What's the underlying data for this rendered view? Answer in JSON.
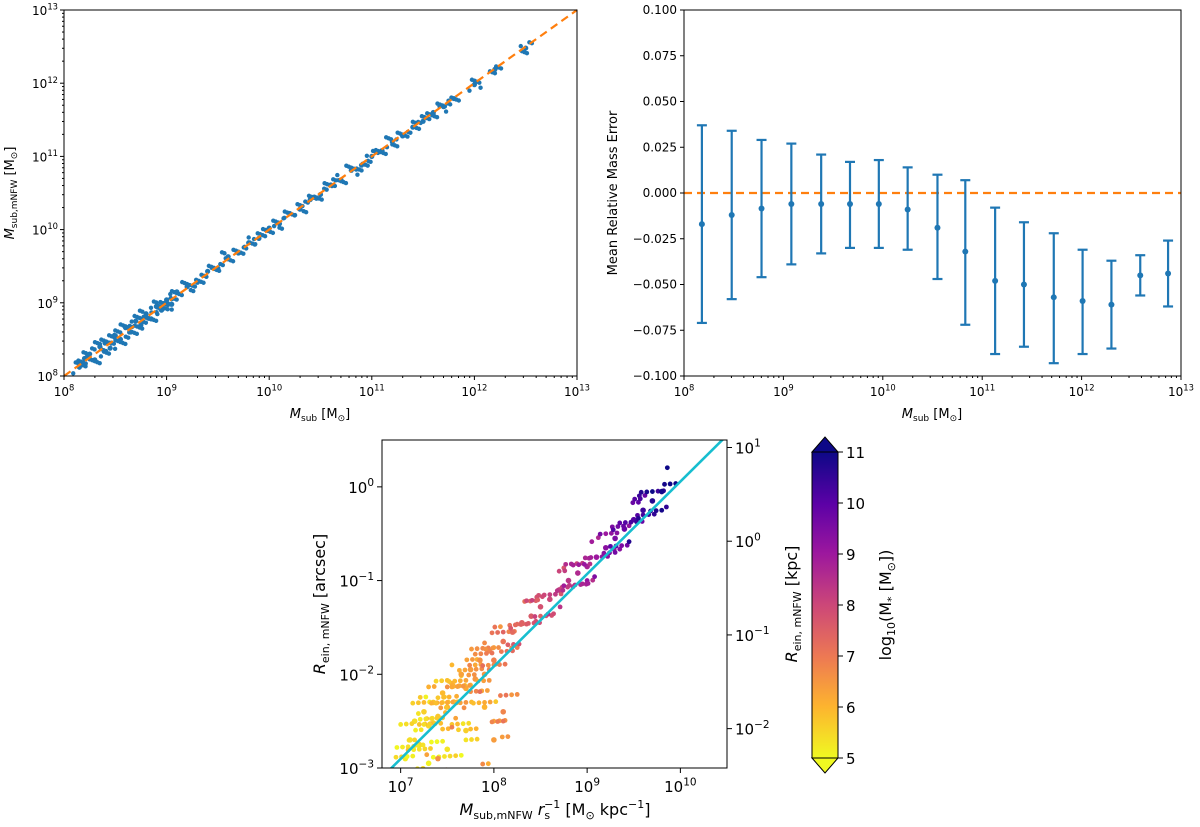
{
  "chart_data": [
    {
      "id": "panel-a",
      "type": "scatter",
      "xscale": "log",
      "yscale": "log",
      "xlim_exp": [
        8,
        13
      ],
      "ylim_exp": [
        8,
        13
      ],
      "xticks": [
        {
          "exp": 8,
          "label": "10",
          "sup": "8"
        },
        {
          "exp": 9,
          "label": "10",
          "sup": "9"
        },
        {
          "exp": 10,
          "label": "10",
          "sup": "10"
        },
        {
          "exp": 11,
          "label": "10",
          "sup": "11"
        },
        {
          "exp": 12,
          "label": "10",
          "sup": "12"
        },
        {
          "exp": 13,
          "label": "10",
          "sup": "13"
        }
      ],
      "yticks": [
        {
          "exp": 8,
          "label": "10",
          "sup": "8"
        },
        {
          "exp": 9,
          "label": "10",
          "sup": "9"
        },
        {
          "exp": 10,
          "label": "10",
          "sup": "10"
        },
        {
          "exp": 11,
          "label": "10",
          "sup": "11"
        },
        {
          "exp": 12,
          "label": "10",
          "sup": "12"
        },
        {
          "exp": 13,
          "label": "10",
          "sup": "13"
        }
      ],
      "xlabel": {
        "main": "M",
        "sub": "sub",
        "unit": "[M",
        "unit_sub": "⊙",
        "close": "]"
      },
      "ylabel": {
        "main": "M",
        "sub": "sub,mNFW",
        "unit": "[M",
        "unit_sub": "⊙",
        "close": "]"
      },
      "series": [
        {
          "name": "subhalos",
          "color": "#1f77b4",
          "marker": "dot",
          "points": [
            [
              8.15,
              8.12
            ],
            [
              8.2,
              8.24
            ],
            [
              8.25,
              8.3
            ],
            [
              8.3,
              8.22
            ],
            [
              8.35,
              8.4
            ],
            [
              8.4,
              8.45
            ],
            [
              8.45,
              8.38
            ],
            [
              8.5,
              8.55
            ],
            [
              8.55,
              8.5
            ],
            [
              8.6,
              8.66
            ],
            [
              8.65,
              8.6
            ],
            [
              8.7,
              8.75
            ],
            [
              8.75,
              8.7
            ],
            [
              8.8,
              8.85
            ],
            [
              8.85,
              8.78
            ],
            [
              8.9,
              8.95
            ],
            [
              8.95,
              8.9
            ],
            [
              9.0,
              9.04
            ],
            [
              9.05,
              8.98
            ],
            [
              9.1,
              9.15
            ],
            [
              9.2,
              9.22
            ],
            [
              9.3,
              9.28
            ],
            [
              9.4,
              9.43
            ],
            [
              9.5,
              9.47
            ],
            [
              9.6,
              9.63
            ],
            [
              9.7,
              9.68
            ],
            [
              9.8,
              9.82
            ],
            [
              9.9,
              9.88
            ],
            [
              10.0,
              10.02
            ],
            [
              10.1,
              10.08
            ],
            [
              10.2,
              10.22
            ],
            [
              10.3,
              10.28
            ],
            [
              10.4,
              10.41
            ],
            [
              10.5,
              10.48
            ],
            [
              10.6,
              10.61
            ],
            [
              10.7,
              10.68
            ],
            [
              10.8,
              10.81
            ],
            [
              10.9,
              10.88
            ],
            [
              11.0,
              11.0
            ],
            [
              11.1,
              11.08
            ],
            [
              11.2,
              11.2
            ],
            [
              11.3,
              11.28
            ],
            [
              11.4,
              11.4
            ],
            [
              11.5,
              11.48
            ],
            [
              11.6,
              11.6
            ],
            [
              11.7,
              11.68
            ],
            [
              11.8,
              11.79
            ],
            [
              12.0,
              11.98
            ],
            [
              12.2,
              12.19
            ],
            [
              12.5,
              12.48
            ]
          ]
        },
        {
          "name": "one-to-one",
          "color": "#ff7f0e",
          "line": "dashed",
          "x_exp": [
            8,
            13
          ],
          "y_exp": [
            8,
            13
          ]
        }
      ]
    },
    {
      "id": "panel-b",
      "type": "errorbar",
      "xscale": "log",
      "xlim_exp": [
        8,
        13
      ],
      "ylim": [
        -0.1,
        0.1
      ],
      "xticks": [
        {
          "exp": 8,
          "label": "10",
          "sup": "8"
        },
        {
          "exp": 9,
          "label": "10",
          "sup": "9"
        },
        {
          "exp": 10,
          "label": "10",
          "sup": "10"
        },
        {
          "exp": 11,
          "label": "10",
          "sup": "11"
        },
        {
          "exp": 12,
          "label": "10",
          "sup": "12"
        },
        {
          "exp": 13,
          "label": "10",
          "sup": "13"
        }
      ],
      "yticks": [
        {
          "value": 0.1,
          "label": "0.100"
        },
        {
          "value": 0.075,
          "label": "0.075"
        },
        {
          "value": 0.05,
          "label": "0.050"
        },
        {
          "value": 0.025,
          "label": "0.025"
        },
        {
          "value": 0.0,
          "label": "0.000"
        },
        {
          "value": -0.025,
          "label": "−0.025"
        },
        {
          "value": -0.05,
          "label": "−0.050"
        },
        {
          "value": -0.075,
          "label": "−0.075"
        },
        {
          "value": -0.1,
          "label": "−0.100"
        }
      ],
      "xlabel": {
        "main": "M",
        "sub": "sub",
        "unit": "[M",
        "unit_sub": "⊙",
        "close": "]"
      },
      "ylabel": "Mean Relative Mass Error",
      "series": [
        {
          "name": "mean relative error",
          "color": "#1f77b4",
          "points": [
            {
              "x_exp": 8.18,
              "y": -0.017,
              "lo": -0.071,
              "hi": 0.037
            },
            {
              "x_exp": 8.48,
              "y": -0.012,
              "lo": -0.058,
              "hi": 0.034
            },
            {
              "x_exp": 8.78,
              "y": -0.0085,
              "lo": -0.046,
              "hi": 0.029
            },
            {
              "x_exp": 9.08,
              "y": -0.006,
              "lo": -0.039,
              "hi": 0.027
            },
            {
              "x_exp": 9.38,
              "y": -0.006,
              "lo": -0.033,
              "hi": 0.021
            },
            {
              "x_exp": 9.67,
              "y": -0.006,
              "lo": -0.03,
              "hi": 0.017
            },
            {
              "x_exp": 9.96,
              "y": -0.006,
              "lo": -0.03,
              "hi": 0.018
            },
            {
              "x_exp": 10.25,
              "y": -0.009,
              "lo": -0.031,
              "hi": 0.014
            },
            {
              "x_exp": 10.55,
              "y": -0.019,
              "lo": -0.047,
              "hi": 0.01
            },
            {
              "x_exp": 10.83,
              "y": -0.032,
              "lo": -0.072,
              "hi": 0.007
            },
            {
              "x_exp": 11.13,
              "y": -0.048,
              "lo": -0.088,
              "hi": -0.008
            },
            {
              "x_exp": 11.42,
              "y": -0.05,
              "lo": -0.084,
              "hi": -0.016
            },
            {
              "x_exp": 11.72,
              "y": -0.057,
              "lo": -0.093,
              "hi": -0.022
            },
            {
              "x_exp": 12.01,
              "y": -0.059,
              "lo": -0.088,
              "hi": -0.031
            },
            {
              "x_exp": 12.3,
              "y": -0.061,
              "lo": -0.085,
              "hi": -0.037
            },
            {
              "x_exp": 12.59,
              "y": -0.045,
              "lo": -0.056,
              "hi": -0.034
            },
            {
              "x_exp": 12.87,
              "y": -0.044,
              "lo": -0.062,
              "hi": -0.026
            }
          ]
        },
        {
          "name": "zero line",
          "color": "#ff7f0e",
          "line": "dashed",
          "y": 0.0
        }
      ]
    },
    {
      "id": "panel-c",
      "type": "scatter",
      "xscale": "log",
      "yscale": "log",
      "xlim_exp": [
        6.8,
        10.5
      ],
      "ylim_exp": [
        -3,
        0.5
      ],
      "xticks": [
        {
          "exp": 7,
          "label": "10",
          "sup": "7"
        },
        {
          "exp": 8,
          "label": "10",
          "sup": "8"
        },
        {
          "exp": 9,
          "label": "10",
          "sup": "9"
        },
        {
          "exp": 10,
          "label": "10",
          "sup": "10"
        }
      ],
      "yticks": [
        {
          "exp": 0,
          "label": "10",
          "sup": "0"
        },
        {
          "exp": -1,
          "label": "10",
          "sup": "−1"
        },
        {
          "exp": -2,
          "label": "10",
          "sup": "−2"
        },
        {
          "exp": -3,
          "label": "10",
          "sup": "−3"
        }
      ],
      "y2ticks": [
        {
          "exp": 1,
          "label": "10",
          "sup": "1"
        },
        {
          "exp": 0,
          "label": "10",
          "sup": "0"
        },
        {
          "exp": -1,
          "label": "10",
          "sup": "−1"
        },
        {
          "exp": -2,
          "label": "10",
          "sup": "−2"
        }
      ],
      "y2lim_exp": [
        -2.42,
        1.08
      ],
      "xlabel": {
        "main": "M",
        "sub": "sub,mNFW",
        "mid": "r",
        "mid_sub": "s",
        "mid_sup": "−1",
        "unit": "[M",
        "unit_sub": "⊙",
        "close": "kpc",
        "close_sup": "−1",
        "end": "]"
      },
      "ylabel": {
        "main": "R",
        "sub": "ein, mNFW",
        "unit": "[arcsec]"
      },
      "y2label": {
        "main": "R",
        "sub": "ein, mNFW",
        "unit": "[kpc]"
      },
      "colorbar": {
        "label_pre": "log",
        "label_sub": "10",
        "label_post": "(M",
        "label_sub2": "*",
        "label_close": "[M",
        "label_sub3": "⊙",
        "label_end": "])",
        "range": [
          5,
          11
        ],
        "ticks": [
          {
            "value": 11,
            "label": "11"
          },
          {
            "value": 10,
            "label": "10"
          },
          {
            "value": 9,
            "label": "9"
          },
          {
            "value": 8,
            "label": "8"
          },
          {
            "value": 7,
            "label": "7"
          },
          {
            "value": 6,
            "label": "6"
          },
          {
            "value": 5,
            "label": "5"
          }
        ],
        "colors": [
          "#f0f921",
          "#fdb32f",
          "#ed7953",
          "#cc4778",
          "#9c179e",
          "#5c01a6",
          "#0d0887"
        ]
      },
      "series": [
        {
          "name": "subhalos",
          "marker": "dot",
          "points": [
            [
              7.05,
              -2.9,
              5.2
            ],
            [
              7.1,
              -2.7,
              5.3
            ],
            [
              7.15,
              -2.5,
              5.4
            ],
            [
              7.2,
              -2.75,
              5.5
            ],
            [
              7.25,
              -2.4,
              5.6
            ],
            [
              7.3,
              -2.55,
              5.5
            ],
            [
              7.35,
              -2.3,
              5.8
            ],
            [
              7.4,
              -2.45,
              5.7
            ],
            [
              7.45,
              -2.2,
              5.9
            ],
            [
              7.5,
              -2.35,
              6.0
            ],
            [
              7.55,
              -2.1,
              6.1
            ],
            [
              7.6,
              -2.3,
              6.0
            ],
            [
              7.65,
              -2.0,
              6.3
            ],
            [
              7.7,
              -2.15,
              6.2
            ],
            [
              7.75,
              -1.95,
              6.4
            ],
            [
              7.8,
              -2.05,
              6.5
            ],
            [
              7.85,
              -1.85,
              6.6
            ],
            [
              7.9,
              -2.0,
              6.5
            ],
            [
              7.95,
              -1.75,
              6.8
            ],
            [
              8.0,
              -1.85,
              6.9
            ],
            [
              8.1,
              -1.65,
              7.1
            ],
            [
              8.2,
              -1.55,
              7.3
            ],
            [
              8.3,
              -1.45,
              7.5
            ],
            [
              8.4,
              -1.38,
              7.6
            ],
            [
              8.5,
              -1.28,
              7.8
            ],
            [
              8.6,
              -1.2,
              8.0
            ],
            [
              8.7,
              -1.1,
              8.2
            ],
            [
              8.8,
              -1.0,
              8.4
            ],
            [
              8.9,
              -0.92,
              8.6
            ],
            [
              9.0,
              -0.85,
              8.8
            ],
            [
              9.1,
              -0.75,
              9.0
            ],
            [
              9.2,
              -0.65,
              9.3
            ],
            [
              9.3,
              -0.55,
              9.5
            ],
            [
              9.4,
              -0.45,
              9.8
            ],
            [
              9.5,
              -0.35,
              10.1
            ],
            [
              9.6,
              -0.25,
              10.4
            ],
            [
              9.7,
              -0.15,
              10.7
            ],
            [
              9.8,
              -0.05,
              10.9
            ],
            [
              7.3,
              -2.95,
              5.1
            ],
            [
              7.5,
              -2.8,
              5.3
            ],
            [
              7.7,
              -2.6,
              5.6
            ],
            [
              7.9,
              -2.35,
              6.0
            ],
            [
              8.0,
              -2.7,
              6.4
            ],
            [
              8.1,
              -2.4,
              6.8
            ],
            [
              7.4,
              -2.9,
              6.6
            ]
          ]
        },
        {
          "name": "fit",
          "color": "#17becf",
          "line": "solid"
        }
      ]
    }
  ]
}
